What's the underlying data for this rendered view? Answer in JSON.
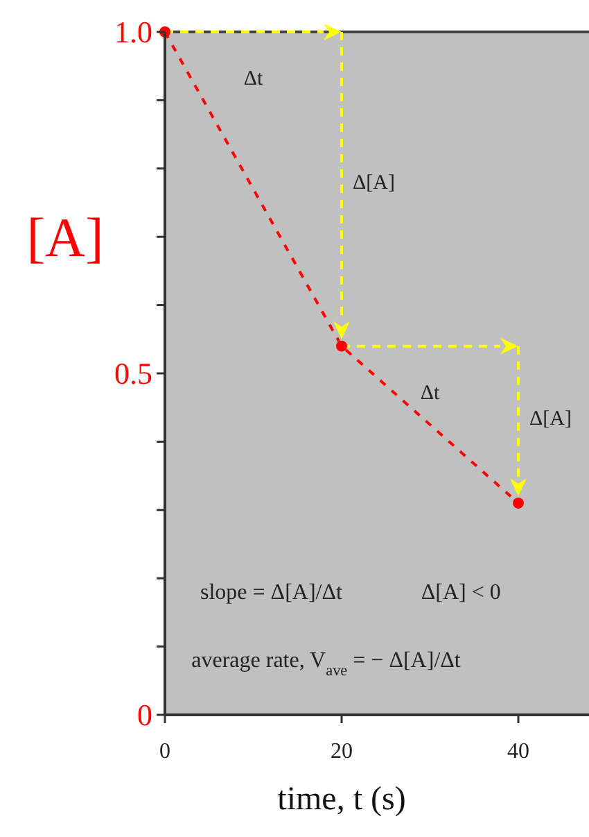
{
  "chart_data": {
    "type": "line",
    "xlabel": "time, t (s)",
    "ylabel": "[A]",
    "x": [
      0,
      20,
      40
    ],
    "series": [
      {
        "color": "#ff0000",
        "values": [
          1.0,
          0.54,
          0.31
        ]
      }
    ],
    "marker": "circle",
    "line_style": "dashed",
    "xlim": [
      0,
      48
    ],
    "xticks": [
      0,
      20,
      40
    ],
    "ylim": [
      0,
      1.0
    ],
    "yticks": [
      0,
      {
        "value": 0.1,
        "label": null
      },
      {
        "value": 0.2,
        "label": null
      },
      {
        "value": 0.3,
        "label": null
      },
      {
        "value": 0.4,
        "label": null
      },
      {
        "value": 0.5,
        "label": "0.5"
      },
      {
        "value": 0.6,
        "label": null
      },
      {
        "value": 0.7,
        "label": null
      },
      {
        "value": 0.8,
        "label": null
      },
      {
        "value": 0.9,
        "label": null
      },
      {
        "value": 1.0,
        "label": "1.0"
      }
    ],
    "grid": false,
    "annotations": [
      "Δt",
      "Δ[A]",
      "Δt",
      "Δ[A]",
      "slope = Δ[A]/Δt",
      "Δ[A] < 0",
      "average rate, V$_{ave}$ = − Δ[A]/Δt"
    ]
  }
}
